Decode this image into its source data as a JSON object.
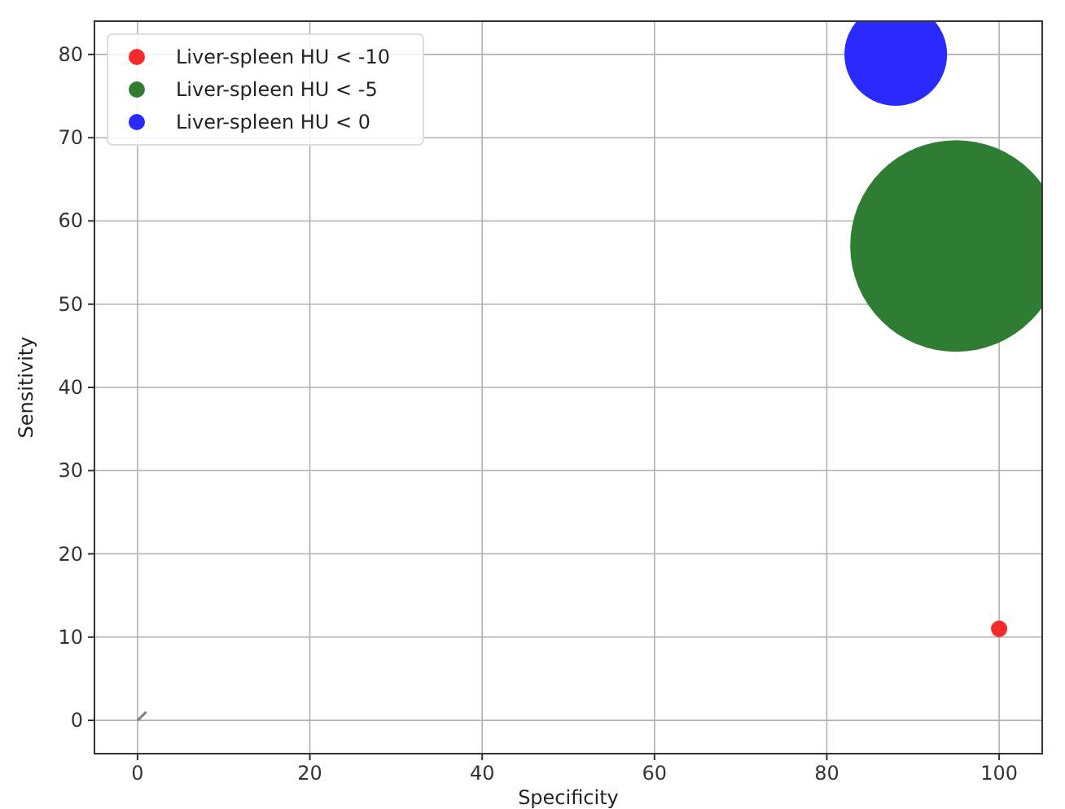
{
  "chart_data": {
    "type": "bubble",
    "xlabel": "Specificity",
    "ylabel": "Sensitivity",
    "xlim": [
      -5,
      105
    ],
    "ylim": [
      -4,
      84
    ],
    "xticks": [
      0,
      20,
      40,
      60,
      80,
      100
    ],
    "yticks": [
      0,
      10,
      20,
      30,
      40,
      50,
      60,
      70,
      80
    ],
    "grid": true,
    "legend": "top left",
    "marker": "circle",
    "series": [
      {
        "name": "Liver-spleen HU < -10",
        "color": "#f52a2a",
        "x": [
          100
        ],
        "values": [
          11
        ],
        "sizes": [
          0.006
        ]
      },
      {
        "name": "Liver-spleen HU < -5",
        "color": "#2e7d32",
        "x": [
          95
        ],
        "values": [
          57
        ],
        "sizes": [
          1
        ]
      },
      {
        "name": "Liver-spleen HU < 0",
        "color": "#2a2aff",
        "x": [
          88
        ],
        "values": [
          80
        ],
        "sizes": [
          0.235
        ]
      },
      {
        "type": "line",
        "marker": "none",
        "color": "#808080",
        "x": [
          0,
          1
        ],
        "values": [
          0,
          1
        ]
      }
    ]
  }
}
